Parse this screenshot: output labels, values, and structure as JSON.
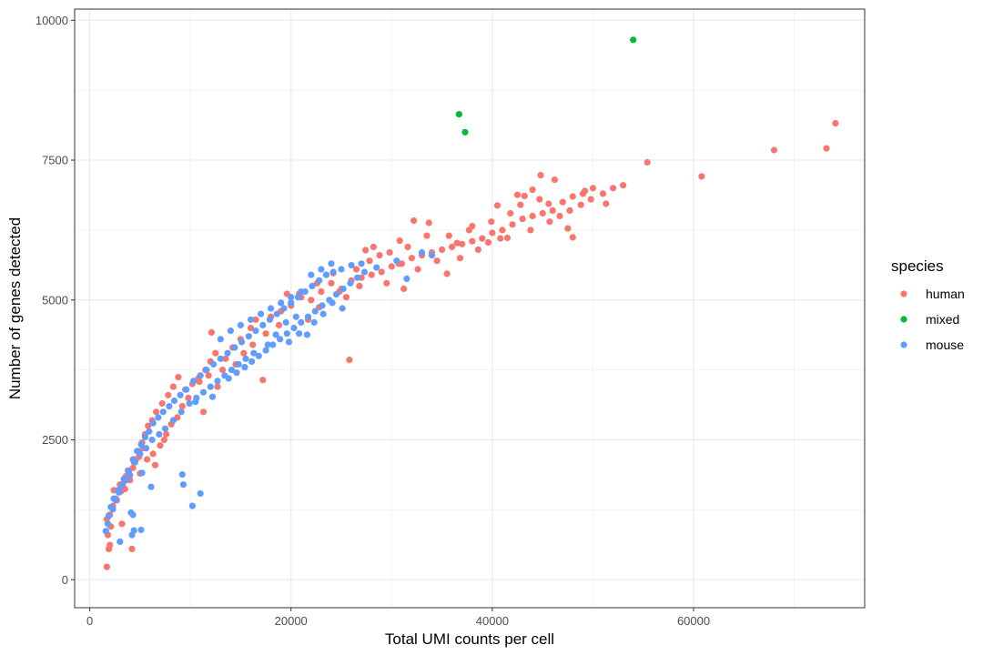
{
  "chart_data": {
    "type": "scatter",
    "title": "",
    "xlabel": "Total UMI counts per cell",
    "ylabel": "Number of genes detected",
    "xlim": [
      -1500,
      77000
    ],
    "ylim": [
      -500,
      10200
    ],
    "x_ticks": [
      0,
      20000,
      40000,
      60000
    ],
    "y_ticks": [
      0,
      2500,
      5000,
      7500,
      10000
    ],
    "x_tick_labels": [
      "0",
      "20000",
      "40000",
      "60000"
    ],
    "y_tick_labels": [
      "0",
      "2500",
      "5000",
      "7500",
      "10000"
    ],
    "grid": true,
    "legend": {
      "title": "species",
      "placement": "right",
      "entries": [
        "human",
        "mixed",
        "mouse"
      ]
    },
    "colors": {
      "human": "#F8766D",
      "mixed": "#00BA38",
      "mouse": "#619CFF"
    },
    "series": [
      {
        "name": "human",
        "points": [
          [
            1700,
            230
          ],
          [
            1900,
            550
          ],
          [
            2000,
            620
          ],
          [
            1800,
            800
          ],
          [
            2100,
            950
          ],
          [
            1700,
            1080
          ],
          [
            2000,
            1160
          ],
          [
            2200,
            1300
          ],
          [
            2700,
            1420
          ],
          [
            3100,
            1580
          ],
          [
            3300,
            1720
          ],
          [
            3600,
            1850
          ],
          [
            3500,
            1620
          ],
          [
            4000,
            1780
          ],
          [
            4300,
            2000
          ],
          [
            4600,
            2150
          ],
          [
            4800,
            2300
          ],
          [
            5200,
            2450
          ],
          [
            5500,
            2600
          ],
          [
            5800,
            2750
          ],
          [
            6200,
            2850
          ],
          [
            6600,
            3000
          ],
          [
            7200,
            3150
          ],
          [
            7800,
            3300
          ],
          [
            8300,
            3450
          ],
          [
            8800,
            3620
          ],
          [
            9500,
            3400
          ],
          [
            10200,
            3500
          ],
          [
            10800,
            3600
          ],
          [
            11500,
            3750
          ],
          [
            12000,
            3900
          ],
          [
            12500,
            4050
          ],
          [
            11300,
            3000
          ],
          [
            12100,
            4420
          ],
          [
            4200,
            550
          ],
          [
            2400,
            1600
          ],
          [
            3200,
            1000
          ],
          [
            5000,
            1900
          ],
          [
            6500,
            2050
          ],
          [
            7400,
            2500
          ],
          [
            13500,
            3950
          ],
          [
            14200,
            4150
          ],
          [
            15000,
            4300
          ],
          [
            16000,
            4500
          ],
          [
            16500,
            4650
          ],
          [
            17200,
            3570
          ],
          [
            18000,
            4700
          ],
          [
            19000,
            4800
          ],
          [
            20000,
            4900
          ],
          [
            21000,
            5050
          ],
          [
            22000,
            5000
          ],
          [
            23000,
            5150
          ],
          [
            24000,
            5300
          ],
          [
            25000,
            5200
          ],
          [
            25800,
            3930
          ],
          [
            26000,
            5350
          ],
          [
            27000,
            5400
          ],
          [
            28000,
            5450
          ],
          [
            29000,
            5500
          ],
          [
            30000,
            5600
          ],
          [
            31000,
            5650
          ],
          [
            32000,
            5750
          ],
          [
            33000,
            5800
          ],
          [
            34000,
            5850
          ],
          [
            35000,
            5900
          ],
          [
            36000,
            5950
          ],
          [
            37000,
            6000
          ],
          [
            38000,
            6050
          ],
          [
            39000,
            6100
          ],
          [
            40000,
            6200
          ],
          [
            41000,
            6250
          ],
          [
            42000,
            6350
          ],
          [
            43000,
            6450
          ],
          [
            44000,
            6500
          ],
          [
            45000,
            6550
          ],
          [
            46000,
            6600
          ],
          [
            47000,
            6750
          ],
          [
            48000,
            6850
          ],
          [
            49000,
            6900
          ],
          [
            50000,
            7000
          ],
          [
            51000,
            6900
          ],
          [
            52000,
            7000
          ],
          [
            53000,
            7050
          ],
          [
            42500,
            6880
          ],
          [
            44800,
            7230
          ],
          [
            46200,
            7150
          ],
          [
            47500,
            6280
          ],
          [
            48000,
            6120
          ],
          [
            49200,
            6950
          ],
          [
            51300,
            6720
          ],
          [
            55400,
            7460
          ],
          [
            60800,
            7210
          ],
          [
            68000,
            7680
          ],
          [
            73200,
            7710
          ],
          [
            74100,
            8160
          ],
          [
            32200,
            6420
          ],
          [
            33700,
            6380
          ],
          [
            35500,
            5470
          ],
          [
            36500,
            6020
          ],
          [
            38000,
            6320
          ],
          [
            39600,
            6030
          ],
          [
            40500,
            6690
          ],
          [
            41500,
            6110
          ],
          [
            43200,
            6860
          ],
          [
            44000,
            6970
          ],
          [
            45600,
            6720
          ],
          [
            27400,
            5890
          ],
          [
            28200,
            5950
          ],
          [
            30800,
            6060
          ],
          [
            31200,
            5200
          ],
          [
            29500,
            5300
          ],
          [
            26500,
            5550
          ],
          [
            24200,
            5480
          ],
          [
            22800,
            4870
          ],
          [
            21700,
            4650
          ],
          [
            20800,
            5110
          ],
          [
            19600,
            5110
          ],
          [
            18800,
            4550
          ],
          [
            17500,
            4400
          ],
          [
            16200,
            4200
          ],
          [
            15300,
            4050
          ],
          [
            14500,
            3850
          ],
          [
            13200,
            3750
          ],
          [
            12700,
            3450
          ],
          [
            11800,
            3650
          ],
          [
            10900,
            3540
          ],
          [
            9800,
            3250
          ],
          [
            9200,
            3100
          ],
          [
            8700,
            2900
          ],
          [
            8100,
            2780
          ],
          [
            7600,
            2600
          ],
          [
            7000,
            2400
          ],
          [
            6300,
            2250
          ],
          [
            5700,
            2150
          ],
          [
            5300,
            2350
          ],
          [
            4900,
            2200
          ],
          [
            4400,
            2100
          ],
          [
            3900,
            1950
          ],
          [
            3400,
            1800
          ],
          [
            3000,
            1700
          ],
          [
            2600,
            1450
          ],
          [
            2300,
            1320
          ],
          [
            1900,
            1150
          ],
          [
            22600,
            5300
          ],
          [
            23500,
            5450
          ],
          [
            24800,
            5150
          ],
          [
            25500,
            5050
          ],
          [
            26800,
            5250
          ],
          [
            27800,
            5700
          ],
          [
            28800,
            5800
          ],
          [
            29800,
            5850
          ],
          [
            30700,
            5650
          ],
          [
            31600,
            5950
          ],
          [
            32600,
            5550
          ],
          [
            33500,
            6150
          ],
          [
            34500,
            5700
          ],
          [
            35700,
            6150
          ],
          [
            36800,
            5750
          ],
          [
            37700,
            6250
          ],
          [
            38600,
            5900
          ],
          [
            39900,
            6400
          ],
          [
            40800,
            6100
          ],
          [
            41800,
            6550
          ],
          [
            42800,
            6700
          ],
          [
            43800,
            6250
          ],
          [
            44700,
            6800
          ],
          [
            45700,
            6400
          ],
          [
            46700,
            6500
          ],
          [
            47700,
            6600
          ],
          [
            48800,
            6700
          ],
          [
            49800,
            6800
          ]
        ]
      },
      {
        "name": "mixed",
        "points": [
          [
            36700,
            8320
          ],
          [
            37300,
            8000
          ],
          [
            54000,
            9650
          ]
        ]
      },
      {
        "name": "mouse",
        "points": [
          [
            1600,
            870
          ],
          [
            1900,
            1140
          ],
          [
            2300,
            1260
          ],
          [
            2600,
            1420
          ],
          [
            2900,
            1560
          ],
          [
            3200,
            1680
          ],
          [
            3600,
            1780
          ],
          [
            4000,
            1870
          ],
          [
            4300,
            2150
          ],
          [
            4700,
            2300
          ],
          [
            5100,
            2420
          ],
          [
            5500,
            2550
          ],
          [
            5900,
            2650
          ],
          [
            6300,
            2800
          ],
          [
            6800,
            2900
          ],
          [
            7300,
            3000
          ],
          [
            7900,
            3100
          ],
          [
            8400,
            3200
          ],
          [
            9000,
            3300
          ],
          [
            9600,
            3400
          ],
          [
            10300,
            3550
          ],
          [
            11000,
            3650
          ],
          [
            11600,
            3750
          ],
          [
            12300,
            3850
          ],
          [
            13000,
            3950
          ],
          [
            13700,
            4050
          ],
          [
            14400,
            4150
          ],
          [
            15100,
            4250
          ],
          [
            15800,
            4350
          ],
          [
            16500,
            4450
          ],
          [
            17200,
            4550
          ],
          [
            17900,
            4650
          ],
          [
            18600,
            4750
          ],
          [
            19300,
            4850
          ],
          [
            20000,
            4950
          ],
          [
            20700,
            5050
          ],
          [
            21400,
            5150
          ],
          [
            22100,
            5250
          ],
          [
            22800,
            5350
          ],
          [
            23500,
            5450
          ],
          [
            24200,
            5500
          ],
          [
            25000,
            5550
          ],
          [
            26000,
            5620
          ],
          [
            27000,
            5650
          ],
          [
            28500,
            5580
          ],
          [
            30500,
            5700
          ],
          [
            31500,
            5380
          ],
          [
            33000,
            5850
          ],
          [
            34000,
            5800
          ],
          [
            3000,
            680
          ],
          [
            4200,
            800
          ],
          [
            4400,
            880
          ],
          [
            5100,
            890
          ],
          [
            4100,
            1200
          ],
          [
            4300,
            1160
          ],
          [
            5200,
            1910
          ],
          [
            6100,
            1660
          ],
          [
            9200,
            1880
          ],
          [
            9300,
            1700
          ],
          [
            11000,
            1540
          ],
          [
            10200,
            1320
          ],
          [
            10500,
            3180
          ],
          [
            12200,
            3270
          ],
          [
            13800,
            3600
          ],
          [
            14600,
            3700
          ],
          [
            15400,
            3800
          ],
          [
            16100,
            3900
          ],
          [
            16800,
            4000
          ],
          [
            17500,
            4100
          ],
          [
            18200,
            4200
          ],
          [
            18900,
            4300
          ],
          [
            19600,
            4400
          ],
          [
            20300,
            4500
          ],
          [
            21000,
            4600
          ],
          [
            21700,
            4700
          ],
          [
            22400,
            4800
          ],
          [
            23100,
            4900
          ],
          [
            23800,
            5000
          ],
          [
            24500,
            5100
          ],
          [
            25200,
            5200
          ],
          [
            25900,
            5300
          ],
          [
            26600,
            5400
          ],
          [
            27300,
            5500
          ],
          [
            13000,
            4300
          ],
          [
            14000,
            4450
          ],
          [
            15000,
            4550
          ],
          [
            16000,
            4650
          ],
          [
            17000,
            4750
          ],
          [
            18000,
            4850
          ],
          [
            19000,
            4950
          ],
          [
            20000,
            5050
          ],
          [
            21000,
            5150
          ],
          [
            22000,
            5450
          ],
          [
            23000,
            5550
          ],
          [
            24000,
            5650
          ],
          [
            18500,
            4380
          ],
          [
            19500,
            4600
          ],
          [
            20500,
            4700
          ],
          [
            17700,
            4200
          ],
          [
            16300,
            4050
          ],
          [
            15500,
            3950
          ],
          [
            14800,
            3850
          ],
          [
            14100,
            3750
          ],
          [
            13400,
            3650
          ],
          [
            12700,
            3550
          ],
          [
            12000,
            3450
          ],
          [
            11300,
            3350
          ],
          [
            10600,
            3250
          ],
          [
            9900,
            3150
          ],
          [
            9100,
            3000
          ],
          [
            8300,
            2850
          ],
          [
            7500,
            2700
          ],
          [
            6900,
            2600
          ],
          [
            6200,
            2500
          ],
          [
            5600,
            2350
          ],
          [
            5000,
            2250
          ],
          [
            4500,
            2100
          ],
          [
            3800,
            1950
          ],
          [
            3400,
            1800
          ],
          [
            2800,
            1600
          ],
          [
            2400,
            1450
          ],
          [
            2100,
            1300
          ],
          [
            1800,
            1000
          ],
          [
            19800,
            4250
          ],
          [
            20800,
            4400
          ],
          [
            21600,
            4380
          ],
          [
            22300,
            4600
          ],
          [
            23200,
            4750
          ],
          [
            24100,
            4950
          ],
          [
            25100,
            4850
          ]
        ]
      }
    ]
  }
}
